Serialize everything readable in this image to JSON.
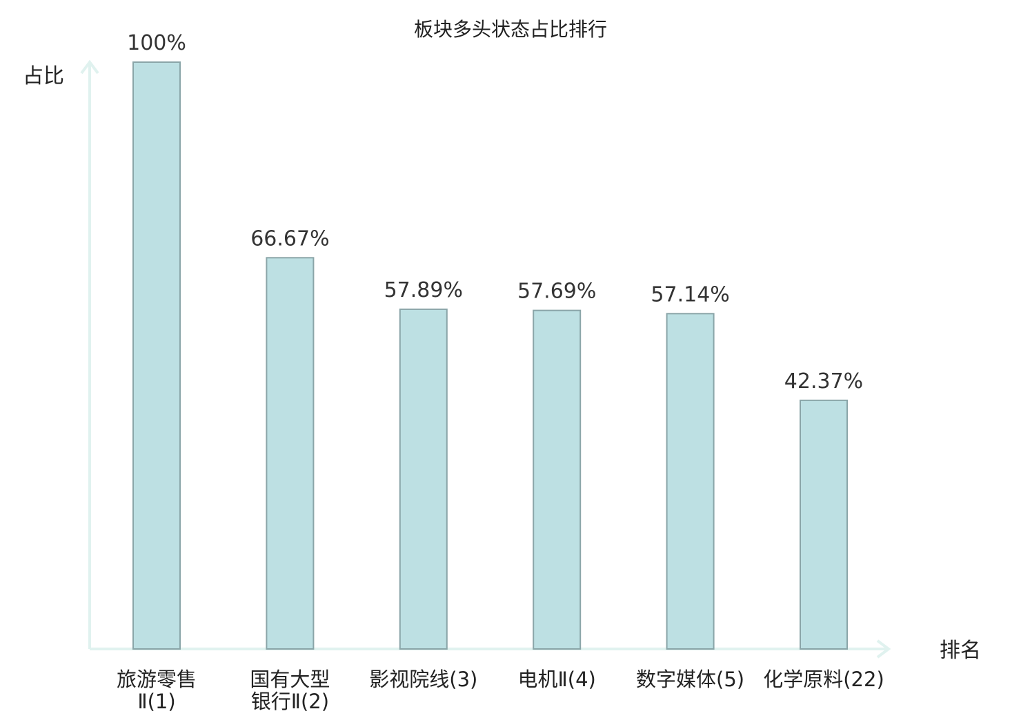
{
  "chart_data": {
    "type": "bar",
    "title": "板块多头状态占比排行",
    "ylabel": "占比",
    "xlabel": "排名",
    "ylim": [
      0,
      100
    ],
    "grid": false,
    "categories": [
      {
        "lines": [
          "旅游零售",
          "Ⅱ(1)"
        ],
        "highlight": false
      },
      {
        "lines": [
          "国有大型",
          "银行Ⅱ(2)"
        ],
        "highlight": false
      },
      {
        "lines": [
          "影视院线(3)"
        ],
        "highlight": false
      },
      {
        "lines": [
          "电机Ⅱ(4)"
        ],
        "highlight": false
      },
      {
        "lines": [
          "数字媒体(5)"
        ],
        "highlight": false
      },
      {
        "lines": [
          "化学原料(22)"
        ],
        "highlight": true
      }
    ],
    "values": [
      100,
      66.67,
      57.89,
      57.69,
      57.14,
      42.37
    ],
    "value_labels": [
      "100%",
      "66.67%",
      "57.89%",
      "57.69%",
      "57.14%",
      "42.37%"
    ]
  },
  "colors": {
    "bar_fill": "#bde0e3",
    "bar_stroke": "#8aa5a8",
    "axis": "#e0f2ef",
    "highlight_text": "#e02020",
    "text": "#222222"
  }
}
